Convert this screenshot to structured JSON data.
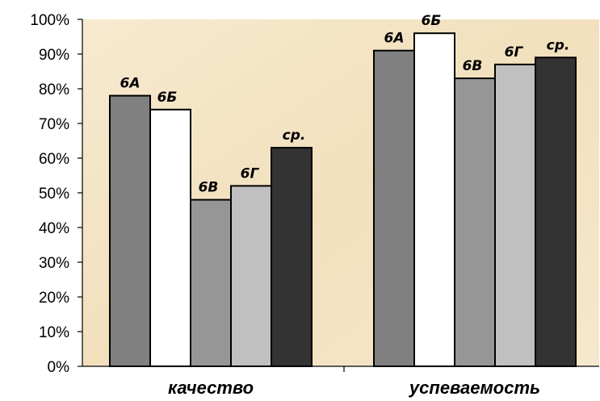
{
  "chart_data": {
    "type": "bar",
    "categories": [
      "качество",
      "успеваемость"
    ],
    "series": [
      {
        "name": "6А",
        "values": [
          78,
          91
        ],
        "color": "#808080"
      },
      {
        "name": "6Б",
        "values": [
          74,
          96
        ],
        "color": "#ffffff"
      },
      {
        "name": "6В",
        "values": [
          48,
          83
        ],
        "color": "#969696"
      },
      {
        "name": "6Г",
        "values": [
          52,
          87
        ],
        "color": "#c0c0c0"
      },
      {
        "name": "ср.",
        "values": [
          63,
          89
        ],
        "color": "#333333"
      }
    ],
    "ylim": [
      0,
      100
    ],
    "yticks": [
      "0%",
      "10%",
      "20%",
      "30%",
      "40%",
      "50%",
      "60%",
      "70%",
      "80%",
      "90%",
      "100%"
    ],
    "grid": false,
    "legend": "none",
    "plot_background": "#f5e6c8"
  }
}
